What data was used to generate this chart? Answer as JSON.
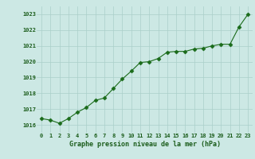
{
  "x": [
    0,
    1,
    2,
    3,
    4,
    5,
    6,
    7,
    8,
    9,
    10,
    11,
    12,
    13,
    14,
    15,
    16,
    17,
    18,
    19,
    20,
    21,
    22,
    23
  ],
  "y": [
    1016.4,
    1016.3,
    1016.1,
    1016.4,
    1016.8,
    1017.1,
    1017.55,
    1017.7,
    1018.3,
    1018.9,
    1019.4,
    1019.95,
    1020.0,
    1020.2,
    1020.6,
    1020.65,
    1020.65,
    1020.8,
    1020.85,
    1021.0,
    1021.1,
    1021.1,
    1022.2,
    1023.0
  ],
  "line_color": "#1a6b1a",
  "marker_color": "#1a6b1a",
  "bg_color": "#cce8e4",
  "grid_color": "#aacfc9",
  "xlabel": "Graphe pression niveau de la mer (hPa)",
  "xlabel_color": "#1a5c1a",
  "tick_color": "#1a5c1a",
  "ylim_min": 1015.5,
  "ylim_max": 1023.5,
  "xlim_min": -0.5,
  "xlim_max": 23.5,
  "yticks": [
    1016,
    1017,
    1018,
    1019,
    1020,
    1021,
    1022,
    1023
  ],
  "xticks": [
    0,
    1,
    2,
    3,
    4,
    5,
    6,
    7,
    8,
    9,
    10,
    11,
    12,
    13,
    14,
    15,
    16,
    17,
    18,
    19,
    20,
    21,
    22,
    23
  ]
}
